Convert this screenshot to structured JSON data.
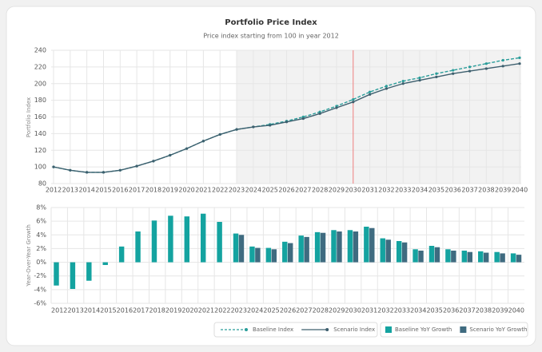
{
  "chart_data": [
    {
      "type": "line",
      "title": "Portfolio Price Index",
      "subtitle": "Price index starting from 100 in year 2012",
      "y_label": "Portfolio Index",
      "categories": [
        "2012",
        "2013",
        "2014",
        "2015",
        "2016",
        "2017",
        "2018",
        "2019",
        "2020",
        "2021",
        "2022",
        "2023",
        "2024",
        "2025",
        "2026",
        "2027",
        "2028",
        "2029",
        "2030",
        "2031",
        "2032",
        "2033",
        "2034",
        "2035",
        "2036",
        "2037",
        "2038",
        "2039",
        "2040"
      ],
      "series": [
        {
          "name": "Baseline Index",
          "color": "#2a9d9a",
          "dashed": true,
          "values": [
            100,
            96,
            93.5,
            93.5,
            96,
            101,
            107,
            114,
            122,
            131,
            139,
            145,
            148,
            151,
            155,
            160,
            166,
            173,
            181,
            190,
            197,
            203,
            207,
            212,
            216,
            220,
            224,
            228,
            231
          ]
        },
        {
          "name": "Scenario Index",
          "color": "#3d5f6e",
          "dashed": false,
          "values": [
            100,
            96,
            93.5,
            93.5,
            96,
            101,
            107,
            114,
            122,
            131,
            139,
            145,
            148,
            150,
            154,
            158,
            164,
            171,
            178,
            187,
            194,
            200,
            204,
            208,
            212,
            215,
            218,
            221,
            224
          ]
        }
      ],
      "ylim": [
        80,
        240
      ],
      "yticks": [
        80,
        100,
        120,
        140,
        160,
        180,
        200,
        220,
        240
      ],
      "grid": true,
      "shade_from": "2023",
      "marker": "2030"
    },
    {
      "type": "bar",
      "y_label": "Year-Over-Year Growth",
      "categories": [
        "2012",
        "2013",
        "2014",
        "2015",
        "2016",
        "2017",
        "2018",
        "2019",
        "2020",
        "2021",
        "2022",
        "2023",
        "2024",
        "2025",
        "2026",
        "2027",
        "2028",
        "2029",
        "2030",
        "2031",
        "2032",
        "2033",
        "2034",
        "2035",
        "2036",
        "2037",
        "2038",
        "2039",
        "2040"
      ],
      "series": [
        {
          "name": "Baseline YoY Growth",
          "color": "#14a3a0",
          "values": [
            -3.4,
            -3.9,
            -2.7,
            -0.4,
            2.3,
            4.5,
            6.1,
            6.8,
            6.7,
            7.1,
            5.9,
            4.2,
            2.3,
            2.1,
            3.0,
            3.9,
            4.4,
            4.7,
            4.7,
            5.2,
            3.5,
            3.1,
            1.9,
            2.4,
            1.9,
            1.7,
            1.6,
            1.5,
            1.3
          ]
        },
        {
          "name": "Scenario YoY Growth",
          "color": "#3f6b80",
          "values": [
            null,
            null,
            null,
            null,
            null,
            null,
            null,
            null,
            null,
            null,
            null,
            4.0,
            2.1,
            1.9,
            2.8,
            3.7,
            4.3,
            4.5,
            4.5,
            5.0,
            3.3,
            2.9,
            1.7,
            2.2,
            1.7,
            1.5,
            1.4,
            1.3,
            1.1
          ]
        }
      ],
      "ylim": [
        -6,
        8
      ],
      "yticks": [
        {
          "value": -6,
          "label": "-6%"
        },
        {
          "value": -4,
          "label": "-4%"
        },
        {
          "value": -2,
          "label": "-2%"
        },
        {
          "value": 0,
          "label": "0%"
        },
        {
          "value": 2,
          "label": "2%"
        },
        {
          "value": 4,
          "label": "4%"
        },
        {
          "value": 6,
          "label": "6%"
        },
        {
          "value": 8,
          "label": "8%"
        }
      ],
      "grid": true
    }
  ]
}
